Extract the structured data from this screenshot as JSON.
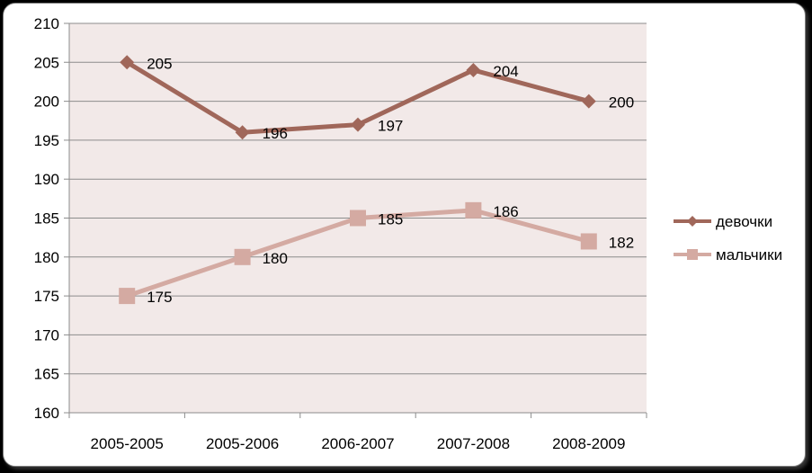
{
  "chart_data": {
    "type": "line",
    "categories": [
      "2005-2005",
      "2005-2006",
      "2006-2007",
      "2007-2008",
      "2008-2009"
    ],
    "series": [
      {
        "name": "девочки",
        "values": [
          205,
          196,
          197,
          204,
          200
        ],
        "color": "#a0675a",
        "marker": "diamond"
      },
      {
        "name": "мальчики",
        "values": [
          175,
          180,
          185,
          186,
          182
        ],
        "color": "#d4aaa2",
        "marker": "square"
      }
    ],
    "y_ticks": [
      "160",
      "165",
      "170",
      "175",
      "180",
      "185",
      "190",
      "195",
      "200",
      "205",
      "210"
    ],
    "ylim": [
      160,
      210
    ],
    "y_step": 5,
    "grid": true,
    "legend_position": "right",
    "colors": {
      "plot_background": "#f2e9e8",
      "gridline": "#8c8c8c",
      "chart_background": "#ffffff",
      "page_background": "#000000"
    }
  }
}
